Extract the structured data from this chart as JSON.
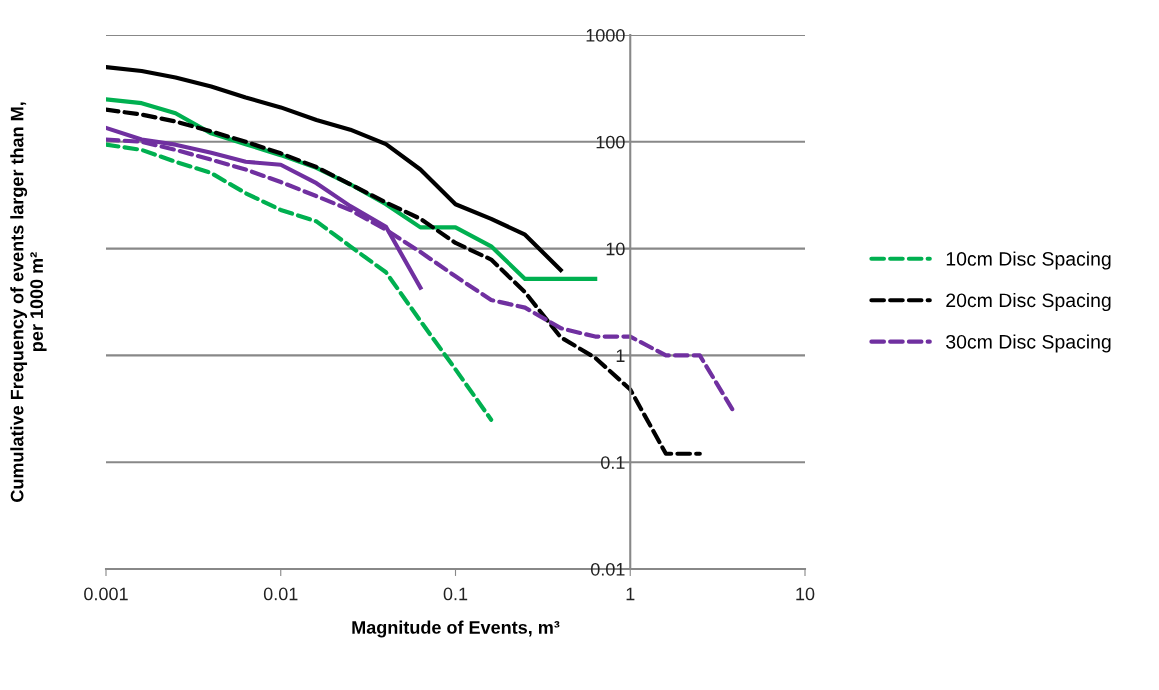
{
  "chart_data": {
    "type": "line",
    "xlabel": "Magnitude of Events, m³",
    "ylabel": "Cumulative Frequency of events larger than M,\nper 1000 m²",
    "log": "xy",
    "xlim": [
      0.001,
      10
    ],
    "xticks": [
      0.001,
      0.01,
      0.1,
      1,
      10
    ],
    "ylim": [
      0.01,
      1000
    ],
    "yticks": [
      0.01,
      0.1,
      1,
      10,
      100,
      1000
    ],
    "grid": "y",
    "legend": "right",
    "marker": "none",
    "x": [
      0.001,
      0.0016,
      0.0025,
      0.004,
      0.0063,
      0.01,
      0.016,
      0.025,
      0.04,
      0.063,
      0.1,
      0.16,
      0.25,
      0.4,
      0.63,
      1,
      1.6,
      2.5,
      4
    ],
    "series": [
      {
        "color": "#000000",
        "line_style": "solid",
        "values": [
          500,
          460,
          400,
          330,
          260,
          210,
          160,
          130,
          95,
          55,
          26,
          19,
          13.5,
          6.3,
          null,
          null,
          null,
          null,
          null
        ]
      },
      {
        "color": "#00b050",
        "line_style": "solid",
        "values": [
          250,
          230,
          185,
          120,
          95,
          75,
          57,
          40,
          26,
          15.8,
          15.8,
          10.5,
          5.2,
          5.2,
          5.2,
          null,
          null,
          null,
          null
        ]
      },
      {
        "color": "#7030a0",
        "line_style": "solid",
        "values": [
          135,
          105,
          94,
          79,
          65,
          61,
          41,
          25,
          16,
          4.3,
          null,
          null,
          null,
          null,
          null,
          null,
          null,
          null,
          null
        ]
      },
      {
        "name": "10cm Disc Spacing",
        "color": "#00b050",
        "line_style": "dashed",
        "values": [
          94,
          84,
          65,
          51,
          33,
          23,
          18,
          10.5,
          6,
          2.1,
          0.74,
          0.25,
          null,
          null,
          null,
          null,
          null,
          null,
          null
        ]
      },
      {
        "name": "20cm Disc Spacing",
        "color": "#000000",
        "line_style": "dashed",
        "values": [
          200,
          180,
          155,
          125,
          100,
          78,
          58,
          40,
          27,
          19,
          11.3,
          7.9,
          3.9,
          1.48,
          0.95,
          0.48,
          0.12,
          0.12,
          null
        ]
      },
      {
        "name": "30cm Disc Spacing",
        "color": "#7030a0",
        "line_style": "dashed",
        "values": [
          105,
          100,
          84,
          68,
          55,
          42,
          31,
          23,
          15,
          9.3,
          5.5,
          3.3,
          2.8,
          1.8,
          1.5,
          1.5,
          1.0,
          1.0,
          0.28
        ]
      }
    ]
  }
}
